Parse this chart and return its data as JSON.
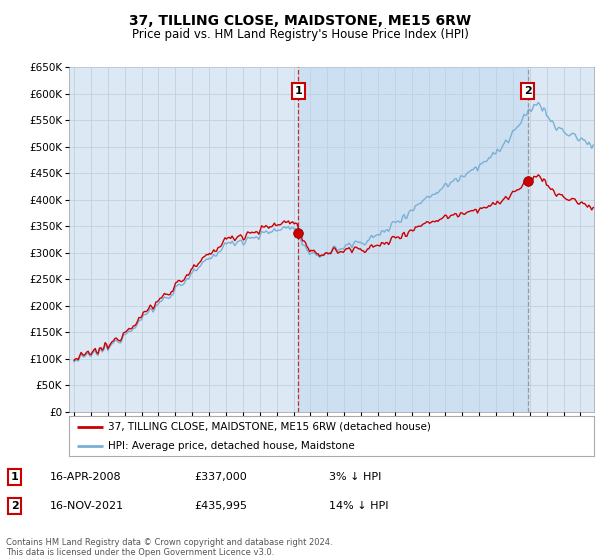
{
  "title": "37, TILLING CLOSE, MAIDSTONE, ME15 6RW",
  "subtitle": "Price paid vs. HM Land Registry's House Price Index (HPI)",
  "ylim": [
    0,
    650000
  ],
  "ytick_values": [
    0,
    50000,
    100000,
    150000,
    200000,
    250000,
    300000,
    350000,
    400000,
    450000,
    500000,
    550000,
    600000,
    650000
  ],
  "xlim_start": 1994.7,
  "xlim_end": 2025.8,
  "purchase1_date": 2008.29,
  "purchase1_price": 337000,
  "purchase2_date": 2021.88,
  "purchase2_price": 435995,
  "line_color_hpi": "#7bafd4",
  "line_color_price": "#cc0000",
  "bg_color": "#dce9f5",
  "grid_color": "#c8d8e8",
  "shade_color": "#c8d8f0",
  "legend_line1": "37, TILLING CLOSE, MAIDSTONE, ME15 6RW (detached house)",
  "legend_line2": "HPI: Average price, detached house, Maidstone",
  "footer": "Contains HM Land Registry data © Crown copyright and database right 2024.\nThis data is licensed under the Open Government Licence v3.0."
}
